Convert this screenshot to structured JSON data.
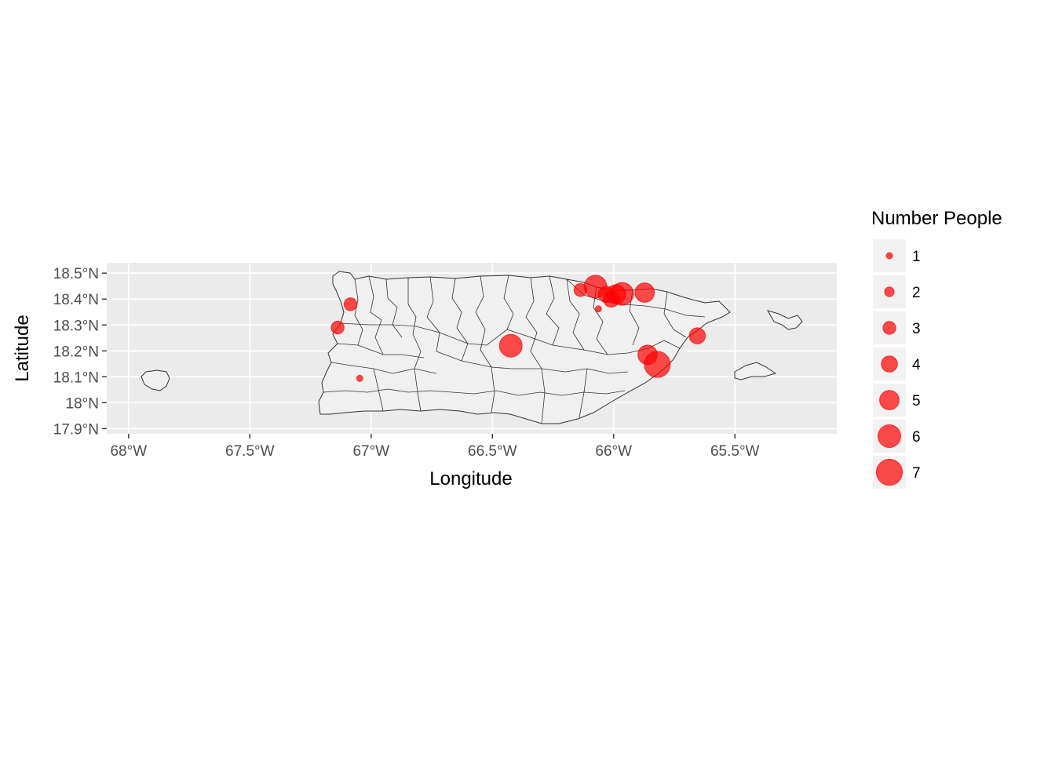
{
  "chart_data": {
    "type": "scatter",
    "subtype": "bubble map",
    "xlabel": "Longitude",
    "ylabel": "Latitude",
    "xlim": [
      -68.09,
      -65.08
    ],
    "ylim": [
      17.88,
      18.54
    ],
    "x_ticks": [
      {
        "value": -68.0,
        "label": "68°W"
      },
      {
        "value": -67.5,
        "label": "67.5°W"
      },
      {
        "value": -67.0,
        "label": "67°W"
      },
      {
        "value": -66.5,
        "label": "66.5°W"
      },
      {
        "value": -66.0,
        "label": "66°W"
      },
      {
        "value": -65.5,
        "label": "65.5°W"
      }
    ],
    "y_ticks": [
      {
        "value": 17.9,
        "label": "17.9°N"
      },
      {
        "value": 18.0,
        "label": "18°N"
      },
      {
        "value": 18.1,
        "label": "18.1°N"
      },
      {
        "value": 18.2,
        "label": "18.2°N"
      },
      {
        "value": 18.3,
        "label": "18.3°N"
      },
      {
        "value": 18.4,
        "label": "18.4°N"
      },
      {
        "value": 18.5,
        "label": "18.5°N"
      }
    ],
    "grid": true,
    "legend": {
      "title": "Number People",
      "placement": "right",
      "entries": [
        {
          "value": 1,
          "label": "1"
        },
        {
          "value": 2,
          "label": "2"
        },
        {
          "value": 3,
          "label": "3"
        },
        {
          "value": 4,
          "label": "4"
        },
        {
          "value": 5,
          "label": "5"
        },
        {
          "value": 6,
          "label": "6"
        },
        {
          "value": 7,
          "label": "7"
        }
      ]
    },
    "point_color": "#ff0000",
    "point_opacity": 0.7,
    "panel_background": "#ebebeb",
    "land_fill": "#f0f0f0",
    "border_color": "#333333",
    "points": [
      {
        "lon": -67.085,
        "lat": 18.38,
        "size": 3
      },
      {
        "lon": -67.138,
        "lat": 18.29,
        "size": 3
      },
      {
        "lon": -67.047,
        "lat": 18.094,
        "size": 1
      },
      {
        "lon": -66.424,
        "lat": 18.22,
        "size": 6
      },
      {
        "lon": -66.137,
        "lat": 18.435,
        "size": 3
      },
      {
        "lon": -66.075,
        "lat": 18.448,
        "size": 6
      },
      {
        "lon": -66.063,
        "lat": 18.362,
        "size": 1
      },
      {
        "lon": -66.03,
        "lat": 18.418,
        "size": 4
      },
      {
        "lon": -66.01,
        "lat": 18.4,
        "size": 4
      },
      {
        "lon": -65.99,
        "lat": 18.418,
        "size": 5
      },
      {
        "lon": -65.965,
        "lat": 18.42,
        "size": 6
      },
      {
        "lon": -65.872,
        "lat": 18.425,
        "size": 5
      },
      {
        "lon": -65.86,
        "lat": 18.185,
        "size": 5
      },
      {
        "lon": -65.82,
        "lat": 18.148,
        "size": 7
      },
      {
        "lon": -65.655,
        "lat": 18.258,
        "size": 4
      }
    ]
  }
}
